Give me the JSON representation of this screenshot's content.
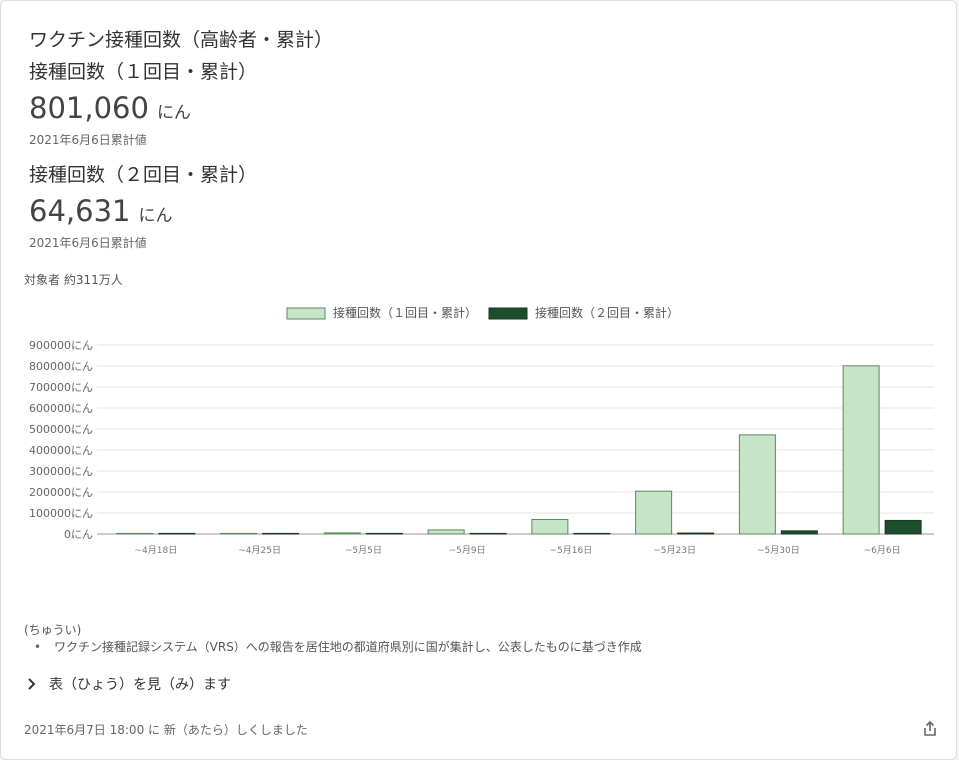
{
  "title": "ワクチン接種回数（高齢者・累計）",
  "dose1": {
    "label": "接種回数（１回目・累計）",
    "value": "801,060",
    "unit": "にん",
    "date": "2021年6月6日累計値"
  },
  "dose2": {
    "label": "接種回数（２回目・累計）",
    "value": "64,631",
    "unit": "にん",
    "date": "2021年6月6日累計値"
  },
  "target_text": "対象者 約311万人",
  "notes": {
    "heading": "(ちゅうい)",
    "items": [
      "ワクチン接種記録システム（VRS）への報告を居住地の都道府県別に国が集計し、公表したものに基づき作成"
    ]
  },
  "table_toggle": "表（ひょう）を見（み）ます",
  "updated": "2021年6月7日 18:00 に 新（あたら）しくしました",
  "colors": {
    "dose1_fill": "#c6e4c6",
    "dose1_stroke": "#5a8a5a",
    "dose2_fill": "#1e4d2b",
    "dose2_stroke": "#173b21"
  },
  "icons": {
    "toggle": "chevron-right-icon",
    "share": "share-icon"
  },
  "chart_data": {
    "type": "bar",
    "categories": [
      "~4月18日",
      "~4月25日",
      "~5月5日",
      "~5月9日",
      "~5月16日",
      "~5月23日",
      "~5月30日",
      "~6月6日"
    ],
    "series": [
      {
        "name": "接種回数（１回目・累計）",
        "values": [
          1100,
          2400,
          5400,
          19500,
          69000,
          204000,
          472000,
          801060
        ]
      },
      {
        "name": "接種回数（２回目・累計）",
        "values": [
          0,
          100,
          200,
          400,
          1200,
          4500,
          15000,
          64631
        ]
      }
    ],
    "yticks": [
      "0にん",
      "100000にん",
      "200000にん",
      "300000にん",
      "400000にん",
      "500000にん",
      "600000にん",
      "700000にん",
      "800000にん",
      "900000にん"
    ],
    "ylim": [
      0,
      900000
    ],
    "grid": true,
    "legend": "top-center"
  }
}
